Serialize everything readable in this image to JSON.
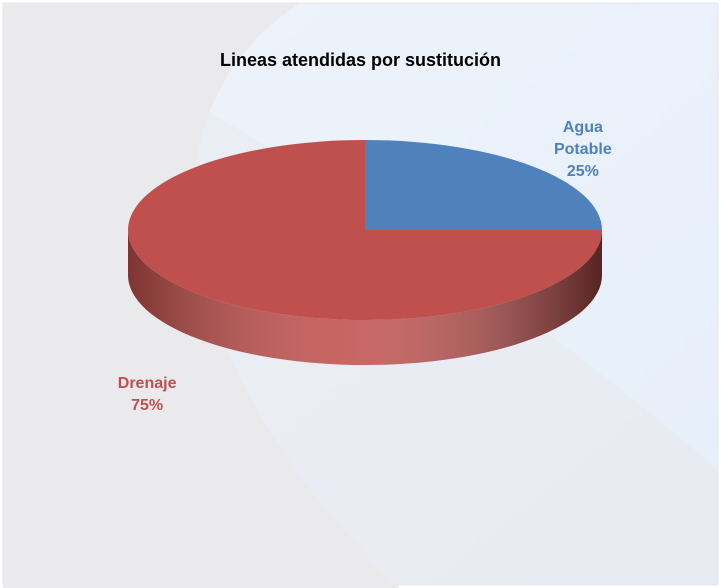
{
  "chart_data": {
    "type": "pie",
    "title": "Lineas atendidas por sustitución",
    "categories": [
      "Agua Potable",
      "Drenaje"
    ],
    "values": [
      25,
      75
    ],
    "value_labels": [
      "25%",
      "75%"
    ],
    "colors": [
      "#4f81bd",
      "#c0504d"
    ],
    "view": "3d"
  }
}
